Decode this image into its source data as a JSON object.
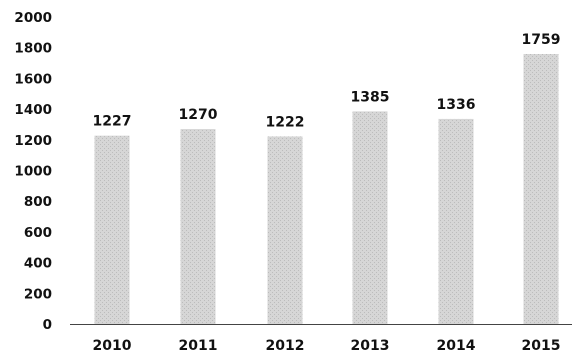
{
  "chart_data": {
    "type": "bar",
    "categories": [
      "2010",
      "2011",
      "2012",
      "2013",
      "2014",
      "2015"
    ],
    "values": [
      1227,
      1270,
      1222,
      1385,
      1336,
      1759
    ],
    "data_labels": [
      "1227",
      "1270",
      "1222",
      "1385",
      "1336",
      "1759"
    ],
    "y_ticks": [
      "0",
      "200",
      "400",
      "600",
      "800",
      "1000",
      "1200",
      "1400",
      "1600",
      "1800",
      "2000"
    ],
    "ylim": [
      0,
      2000
    ],
    "title": "",
    "xlabel": "",
    "ylabel": "",
    "grid": false,
    "legend": "none",
    "colors": {
      "bar": "#d6d6d6",
      "bar_texture": "#bcbcbc",
      "axis": "#444444",
      "text": "#111111"
    }
  }
}
